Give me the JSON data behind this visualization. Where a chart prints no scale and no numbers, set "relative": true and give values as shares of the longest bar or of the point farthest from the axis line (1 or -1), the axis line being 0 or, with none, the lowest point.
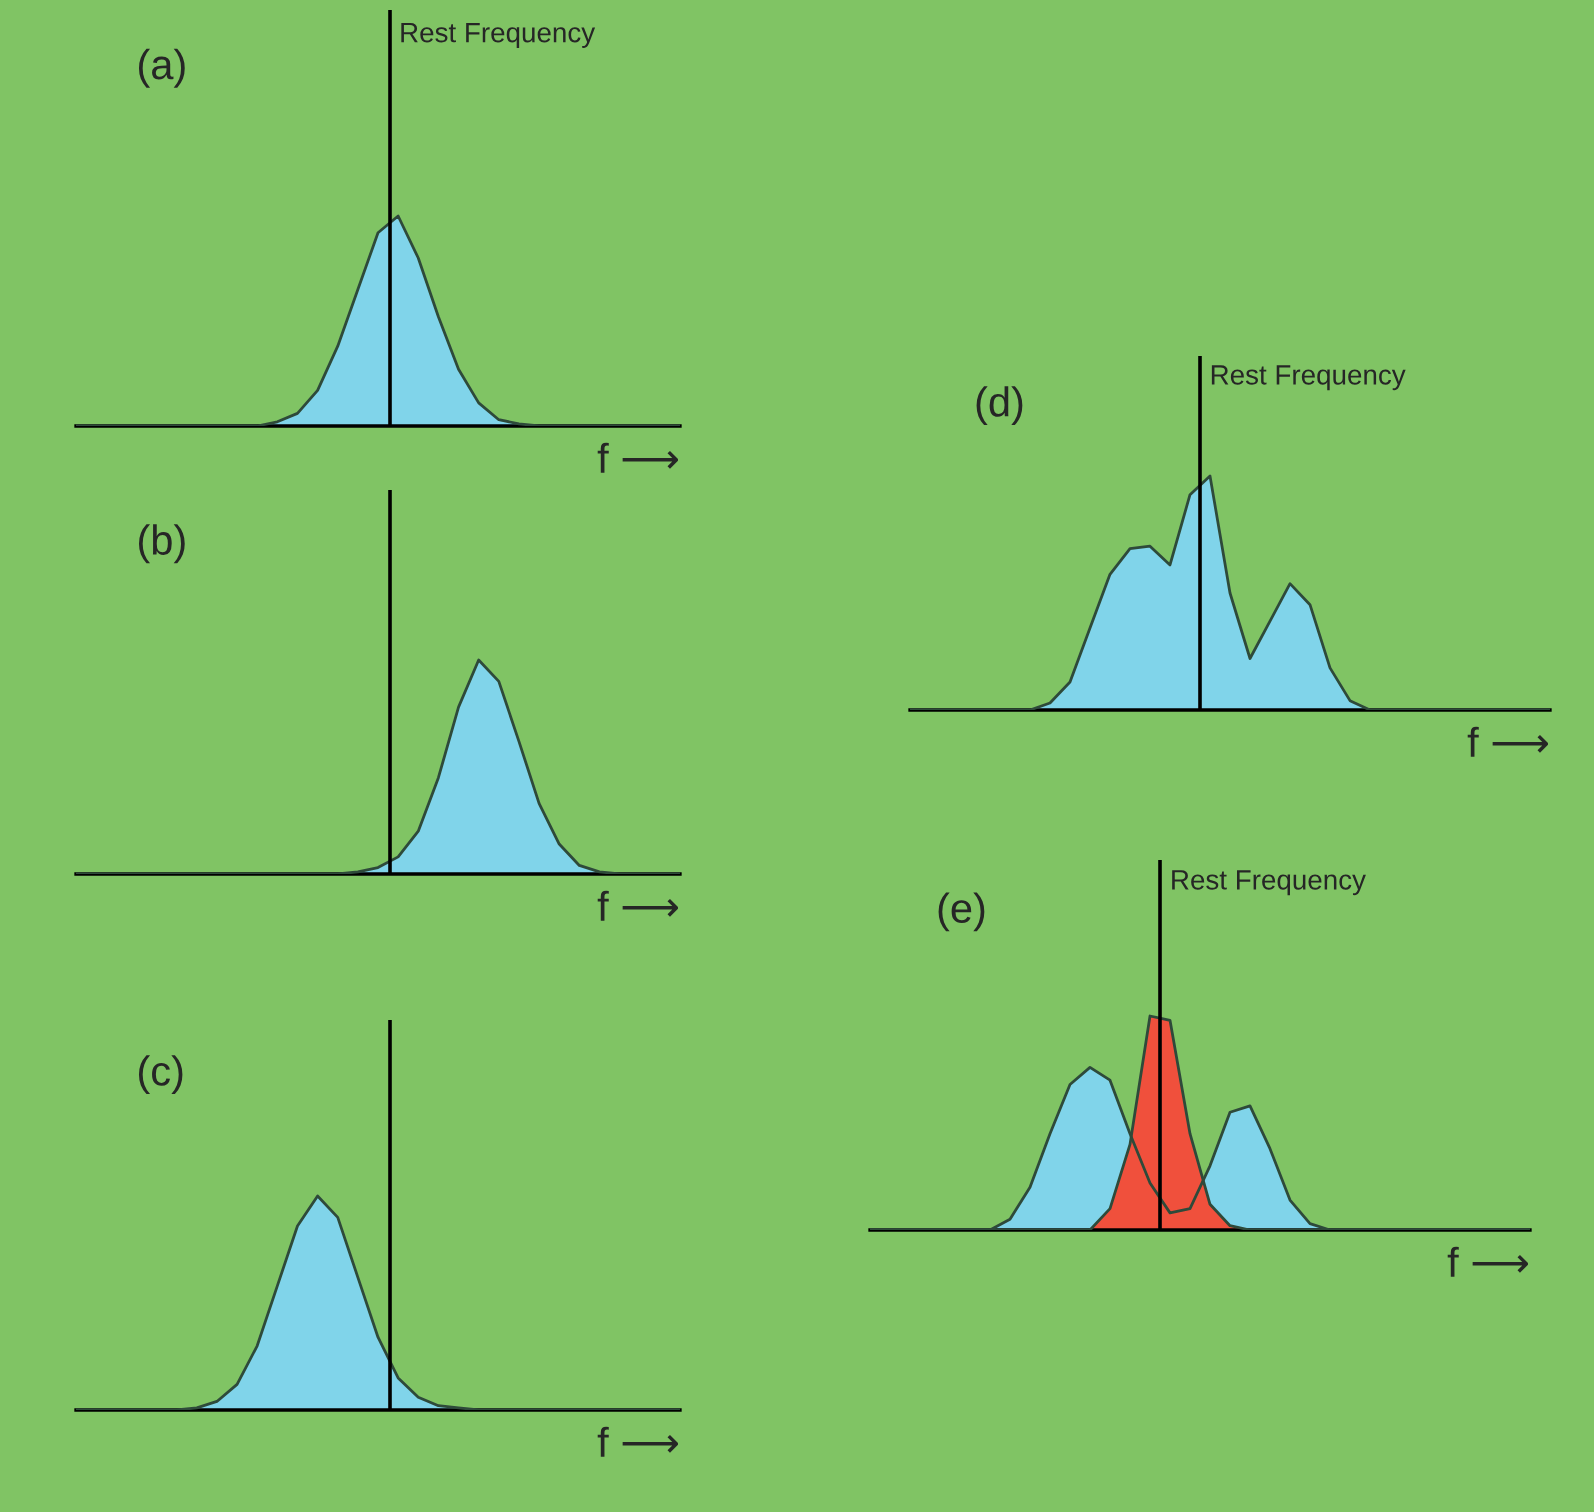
{
  "chart_data": [
    {
      "type": "area",
      "title": "(a)",
      "xlabel": "f ⟶",
      "relative": true,
      "tick_labels": false,
      "categories": [
        null,
        null,
        null,
        null,
        null,
        null,
        null,
        null,
        null,
        null,
        null,
        null,
        null,
        null,
        null,
        null,
        null,
        null,
        null,
        null,
        null,
        null,
        null,
        null,
        null,
        null,
        null,
        null,
        null,
        null,
        null
      ],
      "series": [
        {
          "color": "#80d4ea",
          "values": [
            0,
            0,
            0,
            0,
            0,
            0,
            0,
            0,
            0,
            0,
            0.02,
            0.06,
            0.17,
            0.38,
            0.65,
            0.92,
            1.0,
            0.8,
            0.52,
            0.27,
            0.11,
            0.03,
            0.01,
            0,
            0,
            0,
            0,
            0,
            0,
            0,
            0
          ]
        }
      ],
      "annotations": [
        "Rest Frequency"
      ]
    },
    {
      "type": "area",
      "title": "(b)",
      "xlabel": "f ⟶",
      "relative": true,
      "tick_labels": false,
      "categories": [
        null,
        null,
        null,
        null,
        null,
        null,
        null,
        null,
        null,
        null,
        null,
        null,
        null,
        null,
        null,
        null,
        null,
        null,
        null,
        null,
        null,
        null,
        null,
        null,
        null,
        null,
        null,
        null,
        null,
        null,
        null
      ],
      "series": [
        {
          "color": "#80d4ea",
          "values": [
            0,
            0,
            0,
            0,
            0,
            0,
            0,
            0,
            0,
            0,
            0,
            0,
            0,
            0,
            0.01,
            0.03,
            0.08,
            0.2,
            0.45,
            0.78,
            1.0,
            0.9,
            0.62,
            0.33,
            0.14,
            0.04,
            0.01,
            0,
            0,
            0,
            0
          ]
        }
      ]
    },
    {
      "type": "area",
      "title": "(c)",
      "xlabel": "f ⟶",
      "relative": true,
      "tick_labels": false,
      "categories": [
        null,
        null,
        null,
        null,
        null,
        null,
        null,
        null,
        null,
        null,
        null,
        null,
        null,
        null,
        null,
        null,
        null,
        null,
        null,
        null,
        null,
        null,
        null,
        null,
        null,
        null,
        null,
        null,
        null,
        null,
        null
      ],
      "series": [
        {
          "color": "#80d4ea",
          "values": [
            0,
            0,
            0,
            0,
            0,
            0,
            0.01,
            0.04,
            0.12,
            0.3,
            0.58,
            0.86,
            1.0,
            0.9,
            0.62,
            0.34,
            0.15,
            0.06,
            0.02,
            0.01,
            0,
            0,
            0,
            0,
            0,
            0,
            0,
            0,
            0,
            0,
            0
          ]
        }
      ]
    },
    {
      "type": "area",
      "title": "(d)",
      "xlabel": "f ⟶",
      "relative": true,
      "tick_labels": false,
      "categories": [
        null,
        null,
        null,
        null,
        null,
        null,
        null,
        null,
        null,
        null,
        null,
        null,
        null,
        null,
        null,
        null,
        null,
        null,
        null,
        null,
        null,
        null,
        null,
        null,
        null,
        null,
        null,
        null,
        null,
        null,
        null,
        null,
        null
      ],
      "series": [
        {
          "color": "#80d4ea",
          "values": [
            0,
            0,
            0,
            0,
            0,
            0,
            0,
            0.03,
            0.12,
            0.35,
            0.58,
            0.69,
            0.7,
            0.62,
            0.92,
            1.0,
            0.5,
            0.22,
            0.38,
            0.54,
            0.45,
            0.18,
            0.04,
            0,
            0,
            0,
            0,
            0,
            0,
            0,
            0,
            0,
            0
          ]
        }
      ],
      "annotations": [
        "Rest Frequency"
      ]
    },
    {
      "type": "area",
      "title": "(e)",
      "xlabel": "f ⟶",
      "relative": true,
      "tick_labels": false,
      "categories": [
        null,
        null,
        null,
        null,
        null,
        null,
        null,
        null,
        null,
        null,
        null,
        null,
        null,
        null,
        null,
        null,
        null,
        null,
        null,
        null,
        null,
        null,
        null,
        null,
        null,
        null,
        null,
        null,
        null,
        null,
        null,
        null,
        null,
        null
      ],
      "series": [
        {
          "color": "#80d4ea",
          "values": [
            0,
            0,
            0,
            0,
            0,
            0,
            0,
            0.05,
            0.2,
            0.45,
            0.68,
            0.76,
            0.7,
            0.45,
            0.22,
            0.08,
            0.1,
            0.3,
            0.55,
            0.58,
            0.38,
            0.14,
            0.03,
            0,
            0,
            0,
            0,
            0,
            0,
            0,
            0,
            0,
            0,
            0
          ]
        },
        {
          "color": "#f0503c",
          "values": [
            0,
            0,
            0,
            0,
            0,
            0,
            0,
            0,
            0,
            0,
            0,
            0,
            0.1,
            0.4,
            1.0,
            0.98,
            0.45,
            0.12,
            0.02,
            0,
            0,
            0,
            0,
            0,
            0,
            0,
            0,
            0,
            0,
            0,
            0,
            0,
            0,
            0
          ]
        }
      ],
      "annotations": [
        "Rest Frequency"
      ]
    }
  ]
}
